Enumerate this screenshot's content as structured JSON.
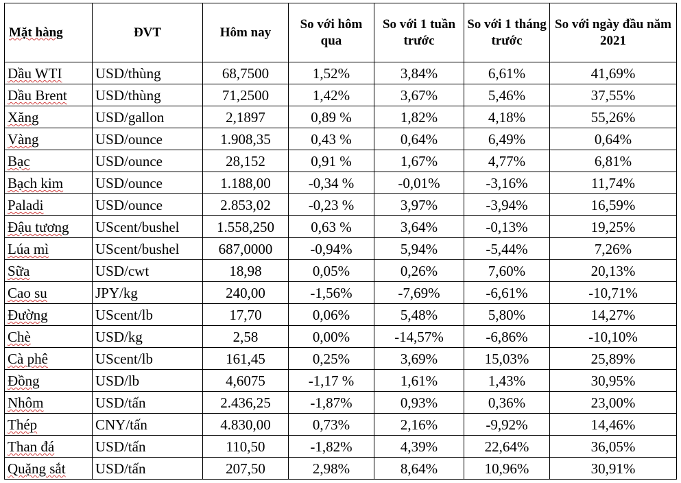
{
  "table": {
    "headers": {
      "item": "Mặt hàng",
      "unit": "ĐVT",
      "today": "Hôm nay",
      "vs_yesterday": "So với hôm qua",
      "vs_1_week": "So với 1 tuần trước",
      "vs_1_month": "So với 1 tháng trước",
      "vs_year_start": "So với ngày đầu năm 2021"
    },
    "rows": [
      {
        "item": "Dầu WTI",
        "unit": "USD/thùng",
        "today": "68,7500",
        "d1": "1,52%",
        "w1": "3,84%",
        "m1": "6,61%",
        "ytd": "41,69%"
      },
      {
        "item": "Dầu Brent",
        "unit": "USD/thùng",
        "today": "71,2500",
        "d1": "1,42%",
        "w1": "3,67%",
        "m1": "5,46%",
        "ytd": "37,55%"
      },
      {
        "item": "Xăng",
        "unit": "USD/gallon",
        "today": "2,1897",
        "d1": "0,89 %",
        "w1": "1,82%",
        "m1": "4,18%",
        "ytd": "55,26%"
      },
      {
        "item": "Vàng",
        "unit": "USD/ounce",
        "today": "1.908,35",
        "d1": "0,43 %",
        "w1": "0,64%",
        "m1": "6,49%",
        "ytd": "0,64%"
      },
      {
        "item": "Bạc",
        "unit": "USD/ounce",
        "today": "28,152",
        "d1": "0,91 %",
        "w1": "1,67%",
        "m1": "4,77%",
        "ytd": "6,81%"
      },
      {
        "item": "Bạch kim",
        "unit": "USD/ounce",
        "today": "1.188,00",
        "d1": "-0,34 %",
        "w1": "-0,01%",
        "m1": "-3,16%",
        "ytd": "11,74%"
      },
      {
        "item": "Paladi",
        "unit": "USD/ounce",
        "today": "2.853,02",
        "d1": "-0,23 %",
        "w1": "3,97%",
        "m1": "-3,94%",
        "ytd": "16,59%"
      },
      {
        "item": "Đậu tương",
        "unit": "UScent/bushel",
        "today": "1.558,250",
        "d1": "0,63 %",
        "w1": "3,64%",
        "m1": "-0,13%",
        "ytd": "19,25%"
      },
      {
        "item": "Lúa mì",
        "unit": "UScent/bushel",
        "today": "687,0000",
        "d1": "-0,94%",
        "w1": "5,94%",
        "m1": "-5,44%",
        "ytd": "7,26%"
      },
      {
        "item": "Sữa",
        "unit": "USD/cwt",
        "today": "18,98",
        "d1": "0,05%",
        "w1": "0,26%",
        "m1": "7,60%",
        "ytd": "20,13%"
      },
      {
        "item": "Cao su",
        "unit": "JPY/kg",
        "today": "240,00",
        "d1": "-1,56%",
        "w1": "-7,69%",
        "m1": "-6,61%",
        "ytd": "-10,71%"
      },
      {
        "item": "Đường",
        "unit": "UScent/lb",
        "today": "17,70",
        "d1": "0,06%",
        "w1": "5,48%",
        "m1": "5,80%",
        "ytd": "14,27%"
      },
      {
        "item": "Chè",
        "unit": "USD/kg",
        "today": "2,58",
        "d1": "0,00%",
        "w1": "-14,57%",
        "m1": "-6,86%",
        "ytd": "-10,10%"
      },
      {
        "item": "Cà phê",
        "unit": "UScent/lb",
        "today": "161,45",
        "d1": "0,25%",
        "w1": "3,69%",
        "m1": "15,03%",
        "ytd": "25,89%"
      },
      {
        "item": "Đồng",
        "unit": "USD/lb",
        "today": "4,6075",
        "d1": "-1,17 %",
        "w1": "1,61%",
        "m1": "1,43%",
        "ytd": "30,95%"
      },
      {
        "item": "Nhôm",
        "unit": "USD/tấn",
        "today": "2.436,25",
        "d1": "-1,87%",
        "w1": "0,93%",
        "m1": "0,36%",
        "ytd": "23,00%"
      },
      {
        "item": "Thép",
        "unit": "CNY/tấn",
        "today": "4.830,00",
        "d1": "0,73%",
        "w1": "2,16%",
        "m1": "-9,92%",
        "ytd": "14,46%"
      },
      {
        "item": "Than đá",
        "unit": "USD/tấn",
        "today": "110,50",
        "d1": "-1,82%",
        "w1": "4,39%",
        "m1": "22,64%",
        "ytd": "36,05%"
      },
      {
        "item": "Quặng sắt",
        "unit": "USD/tấn",
        "today": "207,50",
        "d1": "2,98%",
        "w1": "8,64%",
        "m1": "10,96%",
        "ytd": "30,91%"
      }
    ]
  }
}
